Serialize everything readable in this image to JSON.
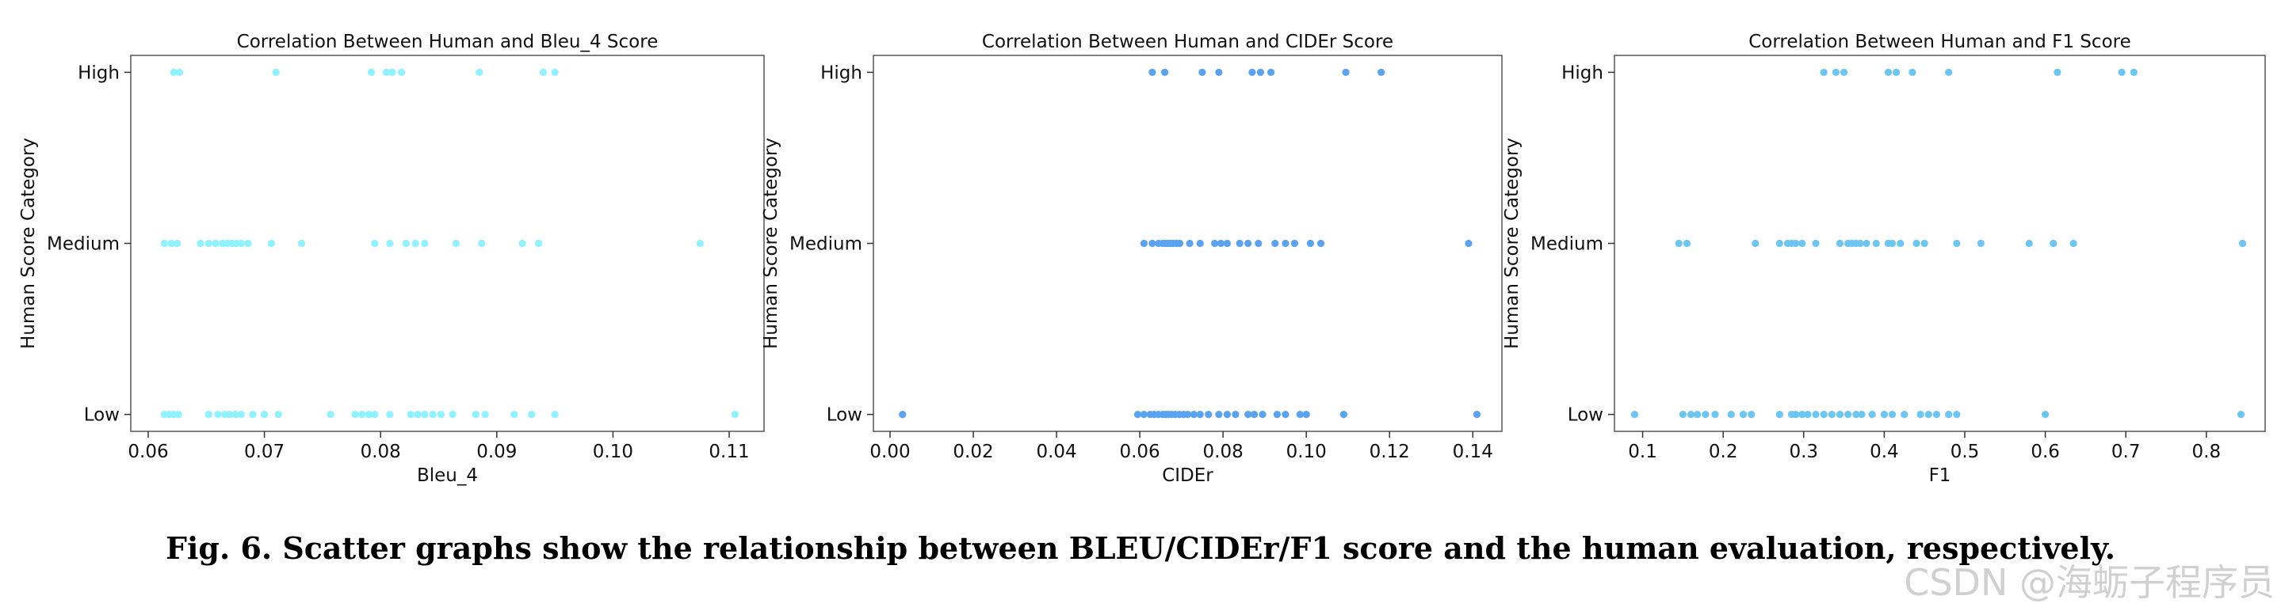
{
  "caption": "Fig. 6. Scatter graphs show the relationship between BLEU/CIDEr/F1 score and the human evaluation, respectively.",
  "watermark": "CSDN @海蛎子程序员",
  "chart_data": [
    {
      "type": "scatter",
      "title": "Correlation Between Human and Bleu_4 Score",
      "xlabel": "Bleu_4",
      "ylabel": "Human Score Category",
      "xlim": [
        0.0585,
        0.113
      ],
      "xticks": [
        0.06,
        0.07,
        0.08,
        0.09,
        0.1,
        0.11
      ],
      "xtick_labels": [
        "0.06",
        "0.07",
        "0.08",
        "0.09",
        "0.10",
        "0.11"
      ],
      "categories": [
        "Low",
        "Medium",
        "High"
      ],
      "color": "#8ff2ff",
      "points": {
        "High": [
          0.0622,
          0.0627,
          0.071,
          0.0792,
          0.0805,
          0.081,
          0.0818,
          0.0885,
          0.094,
          0.095
        ],
        "Medium": [
          0.0614,
          0.062,
          0.0625,
          0.0645,
          0.0652,
          0.0658,
          0.0664,
          0.0668,
          0.0672,
          0.0676,
          0.068,
          0.0686,
          0.0706,
          0.0732,
          0.0795,
          0.0808,
          0.0822,
          0.083,
          0.0838,
          0.0865,
          0.0887,
          0.0922,
          0.0936,
          0.1075
        ],
        "Low": [
          0.0614,
          0.0618,
          0.0622,
          0.0626,
          0.0652,
          0.066,
          0.0666,
          0.067,
          0.0675,
          0.068,
          0.069,
          0.07,
          0.0712,
          0.0757,
          0.0778,
          0.0784,
          0.079,
          0.0795,
          0.0808,
          0.0826,
          0.0832,
          0.0838,
          0.0845,
          0.0852,
          0.0862,
          0.0882,
          0.089,
          0.0915,
          0.093,
          0.095,
          0.1105
        ]
      }
    },
    {
      "type": "scatter",
      "title": "Correlation Between Human and CIDEr Score",
      "xlabel": "CIDEr",
      "ylabel": "Human Score Category",
      "xlim": [
        -0.004,
        0.147
      ],
      "xticks": [
        0.0,
        0.02,
        0.04,
        0.06,
        0.08,
        0.1,
        0.12,
        0.14
      ],
      "xtick_labels": [
        "0.00",
        "0.02",
        "0.04",
        "0.06",
        "0.08",
        "0.10",
        "0.12",
        "0.14"
      ],
      "categories": [
        "Low",
        "Medium",
        "High"
      ],
      "color": "#5aa3f0",
      "points": {
        "High": [
          0.063,
          0.066,
          0.075,
          0.079,
          0.087,
          0.089,
          0.0915,
          0.1095,
          0.118
        ],
        "Medium": [
          0.061,
          0.063,
          0.0645,
          0.0655,
          0.0662,
          0.0668,
          0.0674,
          0.068,
          0.0688,
          0.0696,
          0.072,
          0.0745,
          0.078,
          0.0795,
          0.081,
          0.084,
          0.086,
          0.0885,
          0.0925,
          0.095,
          0.0972,
          0.101,
          0.1035,
          0.139
        ],
        "Low": [
          0.003,
          0.0595,
          0.061,
          0.0625,
          0.0635,
          0.0645,
          0.0655,
          0.0662,
          0.0668,
          0.0676,
          0.0685,
          0.0695,
          0.0705,
          0.0715,
          0.073,
          0.0745,
          0.0765,
          0.079,
          0.081,
          0.083,
          0.086,
          0.0875,
          0.0895,
          0.093,
          0.095,
          0.0985,
          0.1,
          0.109,
          0.141
        ]
      }
    },
    {
      "type": "scatter",
      "title": "Correlation Between Human and F1 Score",
      "xlabel": "F1",
      "ylabel": "Human Score Category",
      "xlim": [
        0.065,
        0.873
      ],
      "xticks": [
        0.1,
        0.2,
        0.3,
        0.4,
        0.5,
        0.6,
        0.7,
        0.8
      ],
      "xtick_labels": [
        "0.1",
        "0.2",
        "0.3",
        "0.4",
        "0.5",
        "0.6",
        "0.7",
        "0.8"
      ],
      "categories": [
        "Low",
        "Medium",
        "High"
      ],
      "color": "#6cc6f2",
      "points": {
        "High": [
          0.325,
          0.34,
          0.35,
          0.405,
          0.415,
          0.435,
          0.48,
          0.615,
          0.695,
          0.71
        ],
        "Medium": [
          0.145,
          0.155,
          0.24,
          0.27,
          0.28,
          0.285,
          0.29,
          0.298,
          0.315,
          0.345,
          0.355,
          0.36,
          0.365,
          0.37,
          0.378,
          0.39,
          0.405,
          0.41,
          0.42,
          0.44,
          0.45,
          0.49,
          0.52,
          0.58,
          0.61,
          0.635,
          0.845
        ],
        "Low": [
          0.09,
          0.15,
          0.16,
          0.168,
          0.178,
          0.19,
          0.21,
          0.225,
          0.235,
          0.27,
          0.285,
          0.29,
          0.298,
          0.305,
          0.315,
          0.325,
          0.335,
          0.345,
          0.355,
          0.365,
          0.372,
          0.385,
          0.4,
          0.41,
          0.425,
          0.445,
          0.455,
          0.465,
          0.48,
          0.49,
          0.6,
          0.843
        ]
      }
    }
  ]
}
